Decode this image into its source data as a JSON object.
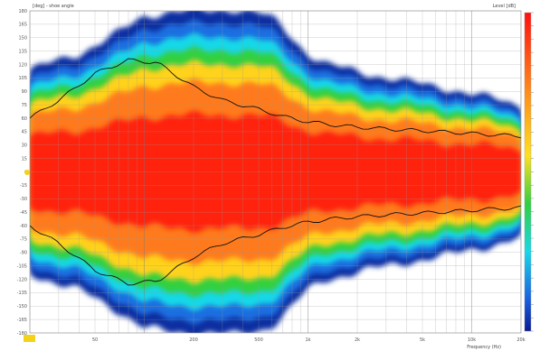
{
  "chart_data": {
    "type": "heatmap",
    "ylabel": "[deg] - shoe angle",
    "xlabel": "Frequency (Hz)",
    "colorbar_label": "Level [dB]",
    "x_scale": "log",
    "xlim": [
      20,
      20000
    ],
    "ylim": [
      -180,
      180
    ],
    "x_tick_labels": [
      "50",
      "200",
      "500",
      "1k",
      "2k",
      "5k",
      "10k",
      "20k"
    ],
    "x_tick_values": [
      50,
      200,
      500,
      1000,
      2000,
      5000,
      10000,
      20000
    ],
    "y_tick_labels": [
      "-180",
      "-165",
      "-150",
      "-135",
      "-120",
      "-105",
      "-90",
      "-75",
      "-60",
      "-45",
      "-30",
      "-15",
      "0",
      "15",
      "30",
      "45",
      "60",
      "75",
      "90",
      "105",
      "120",
      "135",
      "150",
      "165",
      "180"
    ],
    "y_tick_values": [
      -180,
      -165,
      -150,
      -135,
      -120,
      -105,
      -90,
      -75,
      -60,
      -45,
      -30,
      -15,
      0,
      15,
      30,
      45,
      60,
      75,
      90,
      105,
      120,
      135,
      150,
      165,
      180
    ],
    "beamwidth_profile": {
      "frequencies": [
        20,
        40,
        70,
        100,
        150,
        250,
        350,
        500,
        650,
        800,
        1000,
        1300,
        1700,
        2200,
        3000,
        4000,
        6000,
        8000,
        10000,
        14000,
        20000
      ],
      "angles": [
        95,
        110,
        130,
        145,
        150,
        150,
        152,
        148,
        140,
        125,
        110,
        100,
        96,
        92,
        88,
        84,
        80,
        76,
        72,
        68,
        62
      ]
    },
    "contour_profile": {
      "frequencies": [
        20,
        30,
        50,
        80,
        120,
        200,
        300,
        500,
        700,
        1000,
        1500,
        2000,
        3000,
        5000,
        8000,
        12000,
        20000
      ],
      "angles": [
        60,
        80,
        110,
        125,
        122,
        95,
        80,
        70,
        62,
        56,
        52,
        50,
        48,
        46,
        44,
        42,
        40
      ]
    },
    "grid": true,
    "colorbar": "right",
    "colors": {
      "red": "#ff2010",
      "orange": "#ff7a1a",
      "yellow": "#ffd21e",
      "green": "#30d040",
      "cyan": "#18d8e8",
      "blue": "#1a6ee0",
      "navy": "#0b2fa0",
      "marker": "#f5d21a"
    }
  }
}
